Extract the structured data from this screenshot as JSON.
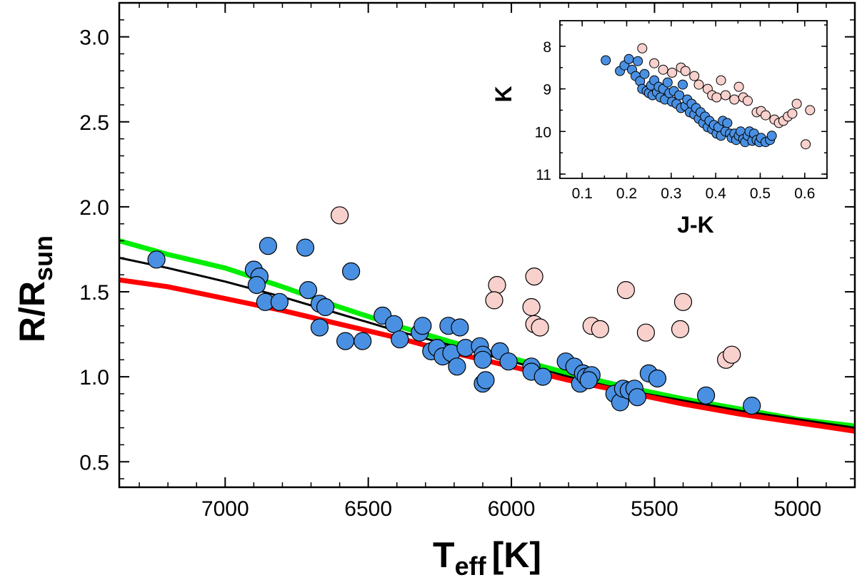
{
  "chart_data": [
    {
      "type": "scatter",
      "xlabel": "T",
      "xlabel_sub": "eff",
      "xlabel_unit": "[K]",
      "ylabel": "R/R",
      "ylabel_sub": "sun",
      "xlim": [
        7370,
        4800
      ],
      "ylim": [
        0.35,
        3.2
      ],
      "x_ticks": [
        7000,
        6500,
        6000,
        5500,
        5000
      ],
      "y_ticks": [
        0.5,
        1.0,
        1.5,
        2.0,
        2.5,
        3.0
      ],
      "x_tick_labels": [
        "7000",
        "6500",
        "6000",
        "5500",
        "5000"
      ],
      "y_tick_labels": [
        "0.5",
        "1.0",
        "1.5",
        "2.0",
        "2.5",
        "3.0"
      ],
      "lines": [
        {
          "color": "#00ee00",
          "points": [
            [
              7370,
              1.8
            ],
            [
              7200,
              1.72
            ],
            [
              7000,
              1.64
            ],
            [
              6800,
              1.53
            ],
            [
              6600,
              1.41
            ],
            [
              6400,
              1.3
            ],
            [
              6200,
              1.2
            ],
            [
              6000,
              1.11
            ],
            [
              5800,
              1.02
            ],
            [
              5600,
              0.94
            ],
            [
              5400,
              0.87
            ],
            [
              5200,
              0.81
            ],
            [
              5000,
              0.75
            ],
            [
              4800,
              0.71
            ]
          ]
        },
        {
          "color": "#000000",
          "points": [
            [
              7370,
              1.7
            ],
            [
              7200,
              1.64
            ],
            [
              7000,
              1.56
            ],
            [
              6800,
              1.47
            ],
            [
              6600,
              1.37
            ],
            [
              6400,
              1.27
            ],
            [
              6200,
              1.18
            ],
            [
              6000,
              1.09
            ],
            [
              5800,
              1.0
            ],
            [
              5600,
              0.92
            ],
            [
              5400,
              0.86
            ],
            [
              5200,
              0.8
            ],
            [
              5000,
              0.75
            ],
            [
              4800,
              0.7
            ]
          ]
        },
        {
          "color": "#ff0000",
          "points": [
            [
              7370,
              1.57
            ],
            [
              7200,
              1.53
            ],
            [
              7000,
              1.46
            ],
            [
              6800,
              1.39
            ],
            [
              6600,
              1.31
            ],
            [
              6400,
              1.23
            ],
            [
              6200,
              1.14
            ],
            [
              6000,
              1.06
            ],
            [
              5800,
              0.98
            ],
            [
              5600,
              0.91
            ],
            [
              5400,
              0.84
            ],
            [
              5200,
              0.78
            ],
            [
              5000,
              0.73
            ],
            [
              4800,
              0.68
            ]
          ]
        }
      ],
      "series": [
        {
          "color": "#4a90e2",
          "points": [
            [
              7240,
              1.69
            ],
            [
              6850,
              1.77
            ],
            [
              6720,
              1.76
            ],
            [
              6560,
              1.62
            ],
            [
              6900,
              1.63
            ],
            [
              6880,
              1.59
            ],
            [
              6890,
              1.54
            ],
            [
              6710,
              1.51
            ],
            [
              6860,
              1.44
            ],
            [
              6810,
              1.44
            ],
            [
              6670,
              1.43
            ],
            [
              6650,
              1.41
            ],
            [
              6670,
              1.29
            ],
            [
              6580,
              1.21
            ],
            [
              6520,
              1.21
            ],
            [
              6450,
              1.36
            ],
            [
              6410,
              1.31
            ],
            [
              6390,
              1.22
            ],
            [
              6320,
              1.26
            ],
            [
              6310,
              1.3
            ],
            [
              6280,
              1.15
            ],
            [
              6260,
              1.17
            ],
            [
              6240,
              1.12
            ],
            [
              6220,
              1.3
            ],
            [
              6210,
              1.14
            ],
            [
              6190,
              1.06
            ],
            [
              6180,
              1.29
            ],
            [
              6160,
              1.17
            ],
            [
              6110,
              1.18
            ],
            [
              6100,
              1.13
            ],
            [
              6100,
              0.96
            ],
            [
              6090,
              0.98
            ],
            [
              6100,
              1.1
            ],
            [
              6040,
              1.15
            ],
            [
              6010,
              1.09
            ],
            [
              5930,
              1.06
            ],
            [
              5930,
              1.03
            ],
            [
              5890,
              1.0
            ],
            [
              5810,
              1.09
            ],
            [
              5780,
              1.06
            ],
            [
              5760,
              0.96
            ],
            [
              5750,
              1.02
            ],
            [
              5740,
              1.0
            ],
            [
              5720,
              1.01
            ],
            [
              5730,
              0.98
            ],
            [
              5640,
              0.9
            ],
            [
              5620,
              0.85
            ],
            [
              5610,
              0.93
            ],
            [
              5590,
              0.92
            ],
            [
              5570,
              0.93
            ],
            [
              5560,
              0.88
            ],
            [
              5520,
              1.02
            ],
            [
              5490,
              0.99
            ],
            [
              5320,
              0.89
            ],
            [
              5160,
              0.83
            ]
          ]
        },
        {
          "color": "#f8d0cc",
          "points": [
            [
              6600,
              1.95
            ],
            [
              6050,
              1.54
            ],
            [
              6060,
              1.45
            ],
            [
              5920,
              1.59
            ],
            [
              5930,
              1.41
            ],
            [
              5920,
              1.31
            ],
            [
              5900,
              1.29
            ],
            [
              5720,
              1.3
            ],
            [
              5690,
              1.28
            ],
            [
              5600,
              1.51
            ],
            [
              5530,
              1.26
            ],
            [
              5400,
              1.44
            ],
            [
              5410,
              1.28
            ],
            [
              5250,
              1.1
            ],
            [
              5230,
              1.13
            ]
          ]
        }
      ]
    },
    {
      "type": "scatter",
      "xlabel": "J-K",
      "ylabel": "K",
      "xlim": [
        0.05,
        0.65
      ],
      "ylim": [
        11.1,
        7.4
      ],
      "x_ticks": [
        0.1,
        0.2,
        0.3,
        0.4,
        0.5,
        0.6
      ],
      "y_ticks": [
        8,
        9,
        10,
        11
      ],
      "x_tick_labels": [
        "0.1",
        "0.2",
        "0.3",
        "0.4",
        "0.5",
        "0.6"
      ],
      "y_tick_labels": [
        "8",
        "9",
        "10",
        "11"
      ],
      "series": [
        {
          "color": "#4a90e2",
          "points": [
            [
              0.153,
              8.33
            ],
            [
              0.185,
              8.58
            ],
            [
              0.195,
              8.45
            ],
            [
              0.205,
              8.3
            ],
            [
              0.212,
              8.55
            ],
            [
              0.22,
              8.7
            ],
            [
              0.225,
              8.35
            ],
            [
              0.23,
              8.82
            ],
            [
              0.235,
              9.0
            ],
            [
              0.24,
              8.65
            ],
            [
              0.245,
              9.05
            ],
            [
              0.25,
              9.1
            ],
            [
              0.255,
              8.92
            ],
            [
              0.258,
              9.15
            ],
            [
              0.262,
              8.8
            ],
            [
              0.268,
              9.08
            ],
            [
              0.272,
              8.95
            ],
            [
              0.276,
              9.2
            ],
            [
              0.282,
              9.0
            ],
            [
              0.286,
              9.25
            ],
            [
              0.292,
              8.85
            ],
            [
              0.296,
              9.1
            ],
            [
              0.302,
              9.3
            ],
            [
              0.306,
              9.05
            ],
            [
              0.312,
              9.35
            ],
            [
              0.318,
              9.15
            ],
            [
              0.322,
              9.45
            ],
            [
              0.326,
              8.9
            ],
            [
              0.332,
              9.4
            ],
            [
              0.336,
              9.25
            ],
            [
              0.342,
              9.55
            ],
            [
              0.346,
              9.35
            ],
            [
              0.352,
              9.6
            ],
            [
              0.356,
              9.45
            ],
            [
              0.362,
              9.7
            ],
            [
              0.366,
              9.55
            ],
            [
              0.372,
              9.8
            ],
            [
              0.376,
              9.65
            ],
            [
              0.382,
              9.9
            ],
            [
              0.386,
              9.75
            ],
            [
              0.392,
              9.95
            ],
            [
              0.396,
              9.85
            ],
            [
              0.402,
              10.05
            ],
            [
              0.406,
              9.9
            ],
            [
              0.412,
              10.1
            ],
            [
              0.416,
              9.75
            ],
            [
              0.422,
              10.0
            ],
            [
              0.426,
              9.8
            ],
            [
              0.432,
              10.05
            ],
            [
              0.436,
              10.15
            ],
            [
              0.442,
              10.05
            ],
            [
              0.446,
              10.2
            ],
            [
              0.452,
              10.1
            ],
            [
              0.456,
              10.0
            ],
            [
              0.462,
              10.18
            ],
            [
              0.466,
              10.25
            ],
            [
              0.472,
              10.1
            ],
            [
              0.476,
              10.0
            ],
            [
              0.482,
              10.22
            ],
            [
              0.486,
              10.05
            ],
            [
              0.492,
              10.2
            ],
            [
              0.498,
              10.25
            ],
            [
              0.502,
              10.15
            ],
            [
              0.512,
              10.25
            ],
            [
              0.522,
              10.2
            ],
            [
              0.526,
              10.1
            ]
          ]
        },
        {
          "color": "#f8d0cc",
          "points": [
            [
              0.235,
              8.05
            ],
            [
              0.262,
              8.4
            ],
            [
              0.282,
              8.55
            ],
            [
              0.302,
              8.62
            ],
            [
              0.322,
              8.5
            ],
            [
              0.332,
              8.58
            ],
            [
              0.352,
              8.7
            ],
            [
              0.362,
              8.9
            ],
            [
              0.382,
              9.0
            ],
            [
              0.392,
              9.15
            ],
            [
              0.402,
              9.2
            ],
            [
              0.412,
              8.8
            ],
            [
              0.422,
              9.15
            ],
            [
              0.442,
              9.25
            ],
            [
              0.452,
              8.95
            ],
            [
              0.462,
              9.2
            ],
            [
              0.472,
              9.28
            ],
            [
              0.492,
              9.55
            ],
            [
              0.502,
              9.52
            ],
            [
              0.512,
              9.62
            ],
            [
              0.532,
              9.72
            ],
            [
              0.542,
              9.8
            ],
            [
              0.552,
              9.75
            ],
            [
              0.562,
              9.65
            ],
            [
              0.572,
              9.58
            ],
            [
              0.582,
              9.35
            ],
            [
              0.602,
              10.3
            ],
            [
              0.612,
              9.5
            ]
          ]
        }
      ]
    }
  ]
}
